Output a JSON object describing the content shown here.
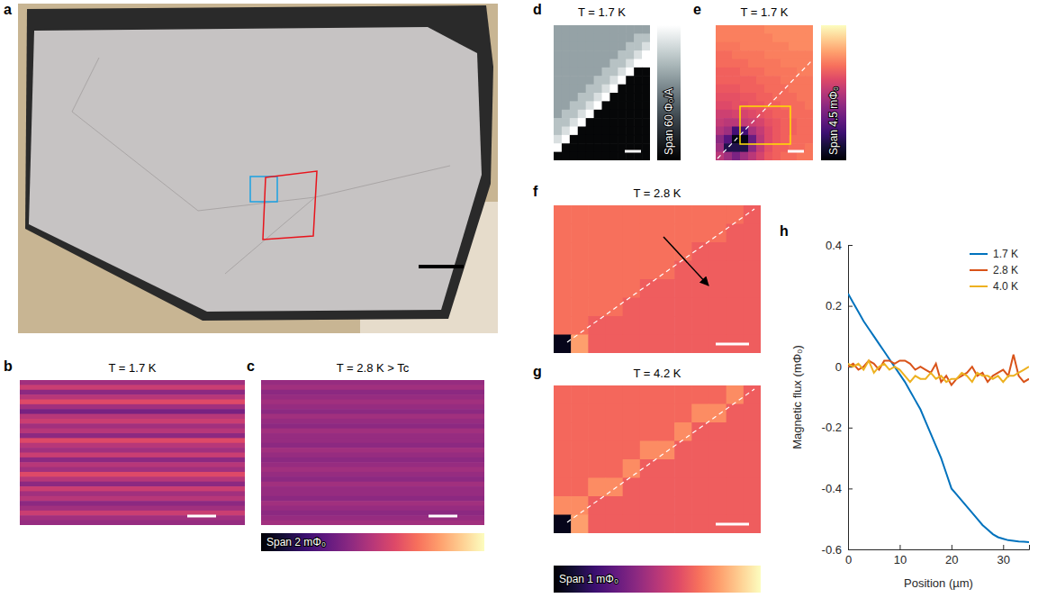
{
  "chart_data": [
    {
      "type": "image",
      "panel": "a"
    },
    {
      "type": "heatmap",
      "panel": "b",
      "title": "T = 1.7 K",
      "color": "magma",
      "zlim": [
        0,
        2
      ],
      "cells": [
        [
          0.9
        ],
        [
          1.1
        ],
        [
          0.8
        ],
        [
          1.0
        ],
        [
          1.2
        ],
        [
          0.9
        ],
        [
          0.7
        ],
        [
          1.0
        ],
        [
          1.1
        ],
        [
          0.9
        ],
        [
          1.0
        ],
        [
          0.8
        ],
        [
          1.2
        ],
        [
          1.0
        ],
        [
          0.9
        ],
        [
          1.1
        ],
        [
          0.8
        ],
        [
          1.0
        ],
        [
          0.9
        ],
        [
          1.2
        ],
        [
          1.0
        ],
        [
          0.8
        ],
        [
          1.1
        ],
        [
          0.9
        ],
        [
          1.0
        ],
        [
          0.8
        ],
        [
          0.9
        ],
        [
          1.1
        ],
        [
          0.9
        ],
        [
          0.85
        ]
      ]
    },
    {
      "type": "heatmap",
      "panel": "c",
      "title": "T = 2.8 K > Tc",
      "color": "magma",
      "zlim": [
        0,
        2
      ],
      "colorbar_label": "Span 2 mΦ₀",
      "cells": [
        [
          0.85
        ],
        [
          0.9
        ],
        [
          0.8
        ],
        [
          0.85
        ],
        [
          0.9
        ],
        [
          0.85
        ],
        [
          0.8
        ],
        [
          0.9
        ],
        [
          0.85
        ],
        [
          0.8
        ],
        [
          0.9
        ],
        [
          0.85
        ],
        [
          0.85
        ],
        [
          0.8
        ],
        [
          0.9
        ],
        [
          0.85
        ],
        [
          0.8
        ],
        [
          0.85
        ],
        [
          0.9
        ],
        [
          0.85
        ],
        [
          0.8
        ],
        [
          0.9
        ],
        [
          0.85
        ],
        [
          0.85
        ],
        [
          0.8
        ],
        [
          0.9
        ],
        [
          0.85
        ],
        [
          0.8
        ],
        [
          0.85
        ],
        [
          0.9
        ]
      ]
    },
    {
      "type": "heatmap",
      "panel": "d",
      "title": "T = 1.7 K",
      "color": "bone",
      "zlim": [
        0,
        60
      ],
      "colorbar_label": "Span 60 Φ₀/A",
      "cells": [
        [
          38,
          38,
          38,
          38,
          38,
          38,
          38,
          38,
          38,
          38,
          38,
          38
        ],
        [
          38,
          38,
          38,
          38,
          38,
          38,
          38,
          38,
          38,
          38,
          45,
          45
        ],
        [
          38,
          38,
          38,
          38,
          38,
          38,
          38,
          38,
          38,
          45,
          45,
          52
        ],
        [
          38,
          38,
          38,
          38,
          38,
          38,
          38,
          38,
          45,
          45,
          52,
          60
        ],
        [
          38,
          38,
          38,
          38,
          38,
          38,
          38,
          45,
          45,
          52,
          60,
          60
        ],
        [
          38,
          38,
          38,
          38,
          38,
          38,
          45,
          45,
          52,
          60,
          2,
          2
        ],
        [
          38,
          38,
          38,
          38,
          38,
          45,
          45,
          52,
          60,
          2,
          2,
          2
        ],
        [
          38,
          38,
          38,
          38,
          45,
          45,
          52,
          60,
          2,
          2,
          2,
          2
        ],
        [
          38,
          38,
          38,
          45,
          45,
          52,
          60,
          2,
          2,
          2,
          2,
          2
        ],
        [
          38,
          38,
          45,
          45,
          52,
          60,
          2,
          2,
          2,
          2,
          2,
          2
        ],
        [
          38,
          45,
          45,
          52,
          60,
          2,
          2,
          2,
          2,
          2,
          2,
          2
        ],
        [
          45,
          45,
          52,
          60,
          2,
          2,
          2,
          2,
          2,
          2,
          2,
          2
        ],
        [
          45,
          52,
          60,
          2,
          2,
          2,
          2,
          2,
          2,
          2,
          2,
          2
        ],
        [
          52,
          60,
          2,
          2,
          2,
          2,
          2,
          2,
          2,
          2,
          2,
          2
        ],
        [
          60,
          2,
          2,
          2,
          2,
          2,
          2,
          2,
          2,
          2,
          2,
          2
        ],
        [
          2,
          2,
          2,
          2,
          2,
          2,
          2,
          2,
          2,
          2,
          2,
          2
        ]
      ]
    },
    {
      "type": "heatmap",
      "panel": "e",
      "title": "T = 1.7 K",
      "color": "magma",
      "zlim": [
        0,
        4.5
      ],
      "colorbar_label": "Span 4.5 mΦ₀",
      "cells": [
        [
          3.3,
          3.3,
          3.3,
          3.3,
          3.3,
          3.3,
          3.4,
          3.4,
          3.4,
          3.4,
          3.4,
          3.4
        ],
        [
          3.3,
          3.3,
          3.3,
          3.3,
          3.3,
          3.3,
          3.3,
          3.4,
          3.4,
          3.4,
          3.4,
          3.4
        ],
        [
          3.2,
          3.2,
          3.2,
          3.3,
          3.3,
          3.3,
          3.3,
          3.3,
          3.3,
          3.4,
          3.4,
          3.4
        ],
        [
          3.1,
          3.1,
          3.2,
          3.2,
          3.2,
          3.2,
          3.3,
          3.3,
          3.3,
          3.3,
          3.3,
          3.3
        ],
        [
          3.1,
          3.1,
          3.1,
          3.1,
          3.2,
          3.2,
          3.2,
          3.2,
          3.3,
          3.3,
          3.3,
          3.3
        ],
        [
          3.0,
          3.0,
          3.0,
          3.1,
          3.1,
          3.1,
          3.2,
          3.2,
          3.2,
          3.2,
          3.3,
          3.3
        ],
        [
          3.0,
          3.0,
          3.0,
          3.0,
          3.0,
          3.1,
          3.1,
          3.1,
          3.2,
          3.2,
          3.2,
          3.2
        ],
        [
          2.9,
          2.9,
          2.9,
          3.0,
          3.0,
          3.0,
          3.1,
          3.1,
          3.1,
          3.2,
          3.2,
          3.2
        ],
        [
          2.8,
          2.8,
          2.8,
          2.9,
          2.9,
          3.0,
          3.0,
          3.1,
          3.1,
          3.1,
          3.2,
          3.2
        ],
        [
          2.7,
          2.7,
          2.8,
          2.8,
          2.9,
          2.9,
          3.0,
          3.0,
          3.1,
          3.1,
          3.1,
          3.2
        ],
        [
          2.5,
          2.5,
          2.6,
          2.6,
          2.7,
          2.8,
          2.9,
          3.0,
          3.0,
          3.1,
          3.1,
          3.1
        ],
        [
          2.4,
          2.3,
          2.3,
          2.4,
          2.5,
          2.6,
          2.8,
          2.9,
          3.0,
          3.0,
          3.1,
          3.1
        ],
        [
          2.2,
          2.0,
          1.0,
          1.0,
          2.1,
          2.4,
          2.7,
          2.9,
          3.0,
          3.0,
          3.1,
          3.1
        ],
        [
          1.8,
          1.2,
          0.2,
          0.2,
          1.4,
          2.3,
          2.7,
          2.9,
          3.0,
          3.1,
          3.1,
          3.1
        ],
        [
          2.0,
          0.6,
          0.6,
          0.6,
          1.8,
          2.4,
          2.8,
          3.0,
          3.0,
          3.1,
          3.1,
          3.2
        ],
        [
          2.3,
          2.0,
          1.6,
          2.0,
          2.3,
          2.6,
          2.9,
          3.0,
          3.1,
          3.1,
          3.2,
          3.2
        ]
      ]
    },
    {
      "type": "heatmap",
      "panel": "f",
      "title": "T = 2.8 K",
      "color": "magma",
      "zlim": [
        0,
        1
      ],
      "cells": [
        [
          0.7,
          0.7,
          0.7,
          0.7,
          0.7,
          0.7,
          0.7,
          0.7,
          0.7,
          0.7,
          0.7,
          0.66
        ],
        [
          0.7,
          0.7,
          0.7,
          0.7,
          0.7,
          0.7,
          0.7,
          0.7,
          0.7,
          0.7,
          0.66,
          0.66
        ],
        [
          0.7,
          0.7,
          0.7,
          0.7,
          0.7,
          0.7,
          0.7,
          0.7,
          0.66,
          0.66,
          0.66,
          0.66
        ],
        [
          0.7,
          0.7,
          0.7,
          0.7,
          0.7,
          0.7,
          0.7,
          0.66,
          0.66,
          0.66,
          0.66,
          0.66
        ],
        [
          0.7,
          0.7,
          0.7,
          0.7,
          0.7,
          0.66,
          0.66,
          0.66,
          0.66,
          0.66,
          0.66,
          0.66
        ],
        [
          0.7,
          0.7,
          0.7,
          0.7,
          0.66,
          0.66,
          0.66,
          0.66,
          0.66,
          0.66,
          0.66,
          0.66
        ],
        [
          0.7,
          0.7,
          0.66,
          0.66,
          0.66,
          0.66,
          0.66,
          0.66,
          0.66,
          0.66,
          0.66,
          0.66
        ],
        [
          0.05,
          0.8,
          0.66,
          0.66,
          0.66,
          0.66,
          0.66,
          0.66,
          0.66,
          0.66,
          0.66,
          0.66
        ]
      ]
    },
    {
      "type": "heatmap",
      "panel": "g",
      "title": "T = 4.2 K",
      "color": "magma",
      "zlim": [
        0,
        1
      ],
      "colorbar_label": "Span 1 mΦ₀",
      "cells": [
        [
          0.68,
          0.68,
          0.68,
          0.68,
          0.68,
          0.68,
          0.68,
          0.68,
          0.68,
          0.68,
          0.76,
          0.66
        ],
        [
          0.68,
          0.68,
          0.68,
          0.68,
          0.68,
          0.68,
          0.68,
          0.68,
          0.76,
          0.76,
          0.66,
          0.66
        ],
        [
          0.68,
          0.68,
          0.68,
          0.68,
          0.68,
          0.68,
          0.68,
          0.76,
          0.66,
          0.66,
          0.66,
          0.66
        ],
        [
          0.68,
          0.68,
          0.68,
          0.68,
          0.68,
          0.76,
          0.76,
          0.66,
          0.66,
          0.66,
          0.66,
          0.66
        ],
        [
          0.68,
          0.68,
          0.68,
          0.68,
          0.76,
          0.66,
          0.66,
          0.66,
          0.66,
          0.66,
          0.66,
          0.66
        ],
        [
          0.68,
          0.68,
          0.76,
          0.76,
          0.66,
          0.66,
          0.66,
          0.66,
          0.66,
          0.66,
          0.66,
          0.66
        ],
        [
          0.76,
          0.76,
          0.66,
          0.66,
          0.66,
          0.66,
          0.66,
          0.66,
          0.66,
          0.66,
          0.66,
          0.66
        ],
        [
          0.05,
          0.8,
          0.66,
          0.66,
          0.66,
          0.66,
          0.66,
          0.66,
          0.66,
          0.66,
          0.66,
          0.66
        ]
      ]
    },
    {
      "type": "line",
      "panel": "h",
      "xlabel": "Position (µm)",
      "ylabel": "Magnetic flux (mΦ₀)",
      "xlim": [
        0,
        35
      ],
      "xticks": [
        0,
        10,
        20,
        30
      ],
      "ylim": [
        -0.6,
        0.4
      ],
      "yticks": [
        -0.6,
        -0.4,
        -0.2,
        0,
        0.2,
        0.4
      ],
      "legend": "upper right",
      "x": [
        0,
        1,
        2,
        3,
        4,
        5,
        6,
        7,
        8,
        9,
        10,
        11,
        12,
        13,
        14,
        15,
        16,
        17,
        18,
        19,
        20,
        21,
        22,
        23,
        24,
        25,
        26,
        27,
        28,
        29,
        30,
        31,
        32,
        33,
        34,
        35
      ],
      "series": [
        {
          "name": "1.7 K",
          "color": "#0072bd",
          "values": [
            0.24,
            0.21,
            0.18,
            0.15,
            0.125,
            0.1,
            0.075,
            0.05,
            0.025,
            0.0,
            -0.025,
            -0.05,
            -0.08,
            -0.11,
            -0.14,
            -0.18,
            -0.22,
            -0.26,
            -0.3,
            -0.35,
            -0.4,
            -0.42,
            -0.44,
            -0.46,
            -0.48,
            -0.5,
            -0.52,
            -0.535,
            -0.55,
            -0.56,
            -0.565,
            -0.57,
            -0.572,
            -0.574,
            -0.575,
            -0.576
          ]
        },
        {
          "name": "2.8 K",
          "color": "#d95319",
          "values": [
            0,
            0.01,
            -0.01,
            0,
            0.02,
            0.01,
            -0.01,
            0.02,
            0.02,
            0.01,
            0.02,
            0.02,
            0.01,
            -0.01,
            0,
            -0.01,
            -0.02,
            0.01,
            -0.05,
            -0.03,
            -0.06,
            -0.04,
            -0.03,
            -0.02,
            0,
            -0.03,
            -0.02,
            -0.05,
            -0.03,
            -0.02,
            -0.01,
            -0.03,
            0.04,
            -0.03,
            -0.05,
            -0.04
          ]
        },
        {
          "name": "4.0 K",
          "color": "#edb120",
          "values": [
            0.01,
            0,
            0.01,
            -0.01,
            0.02,
            -0.02,
            0,
            0.01,
            -0.01,
            0,
            -0.01,
            -0.03,
            -0.05,
            -0.03,
            -0.04,
            -0.04,
            -0.02,
            -0.04,
            -0.03,
            -0.05,
            -0.04,
            -0.04,
            -0.02,
            -0.03,
            -0.05,
            -0.02,
            -0.03,
            -0.03,
            -0.04,
            -0.03,
            -0.05,
            -0.03,
            -0.03,
            -0.02,
            -0.01,
            0
          ]
        }
      ]
    }
  ]
}
